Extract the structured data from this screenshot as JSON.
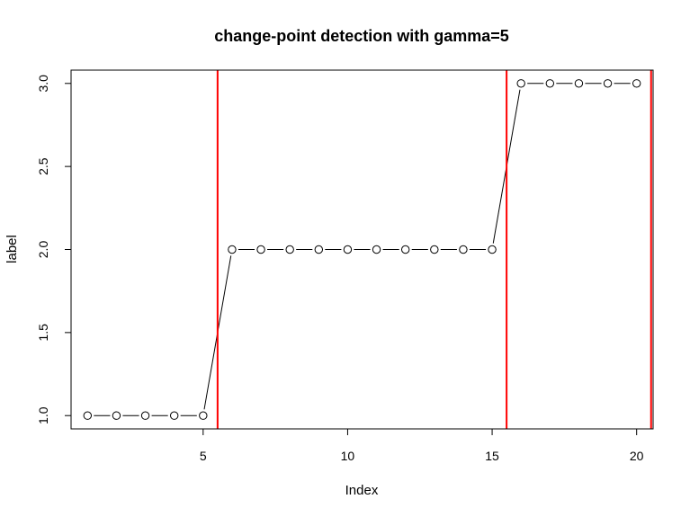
{
  "chart_data": {
    "type": "line",
    "title": "change-point detection with gamma=5",
    "xlabel": "Index",
    "ylabel": "label",
    "xlim": [
      0.43,
      20.57
    ],
    "ylim": [
      0.92,
      3.08
    ],
    "xticks": [
      5,
      10,
      15,
      20
    ],
    "xtick_labels": [
      "5",
      "10",
      "15",
      "20"
    ],
    "yticks": [
      1.0,
      1.5,
      2.0,
      2.5,
      3.0
    ],
    "ytick_labels": [
      "1.0",
      "1.5",
      "2.0",
      "2.5",
      "3.0"
    ],
    "grid": false,
    "legend": "none",
    "series": [
      {
        "marker": "open-circle",
        "x": [
          1,
          2,
          3,
          4,
          5,
          6,
          7,
          8,
          9,
          10,
          11,
          12,
          13,
          14,
          15,
          16,
          17,
          18,
          19,
          20
        ],
        "y": [
          1,
          1,
          1,
          1,
          1,
          2,
          2,
          2,
          2,
          2,
          2,
          2,
          2,
          2,
          2,
          3,
          3,
          3,
          3,
          3
        ]
      }
    ],
    "vlines": {
      "x": [
        5.5,
        15.5,
        20.5
      ],
      "color": "#ff0000"
    }
  }
}
